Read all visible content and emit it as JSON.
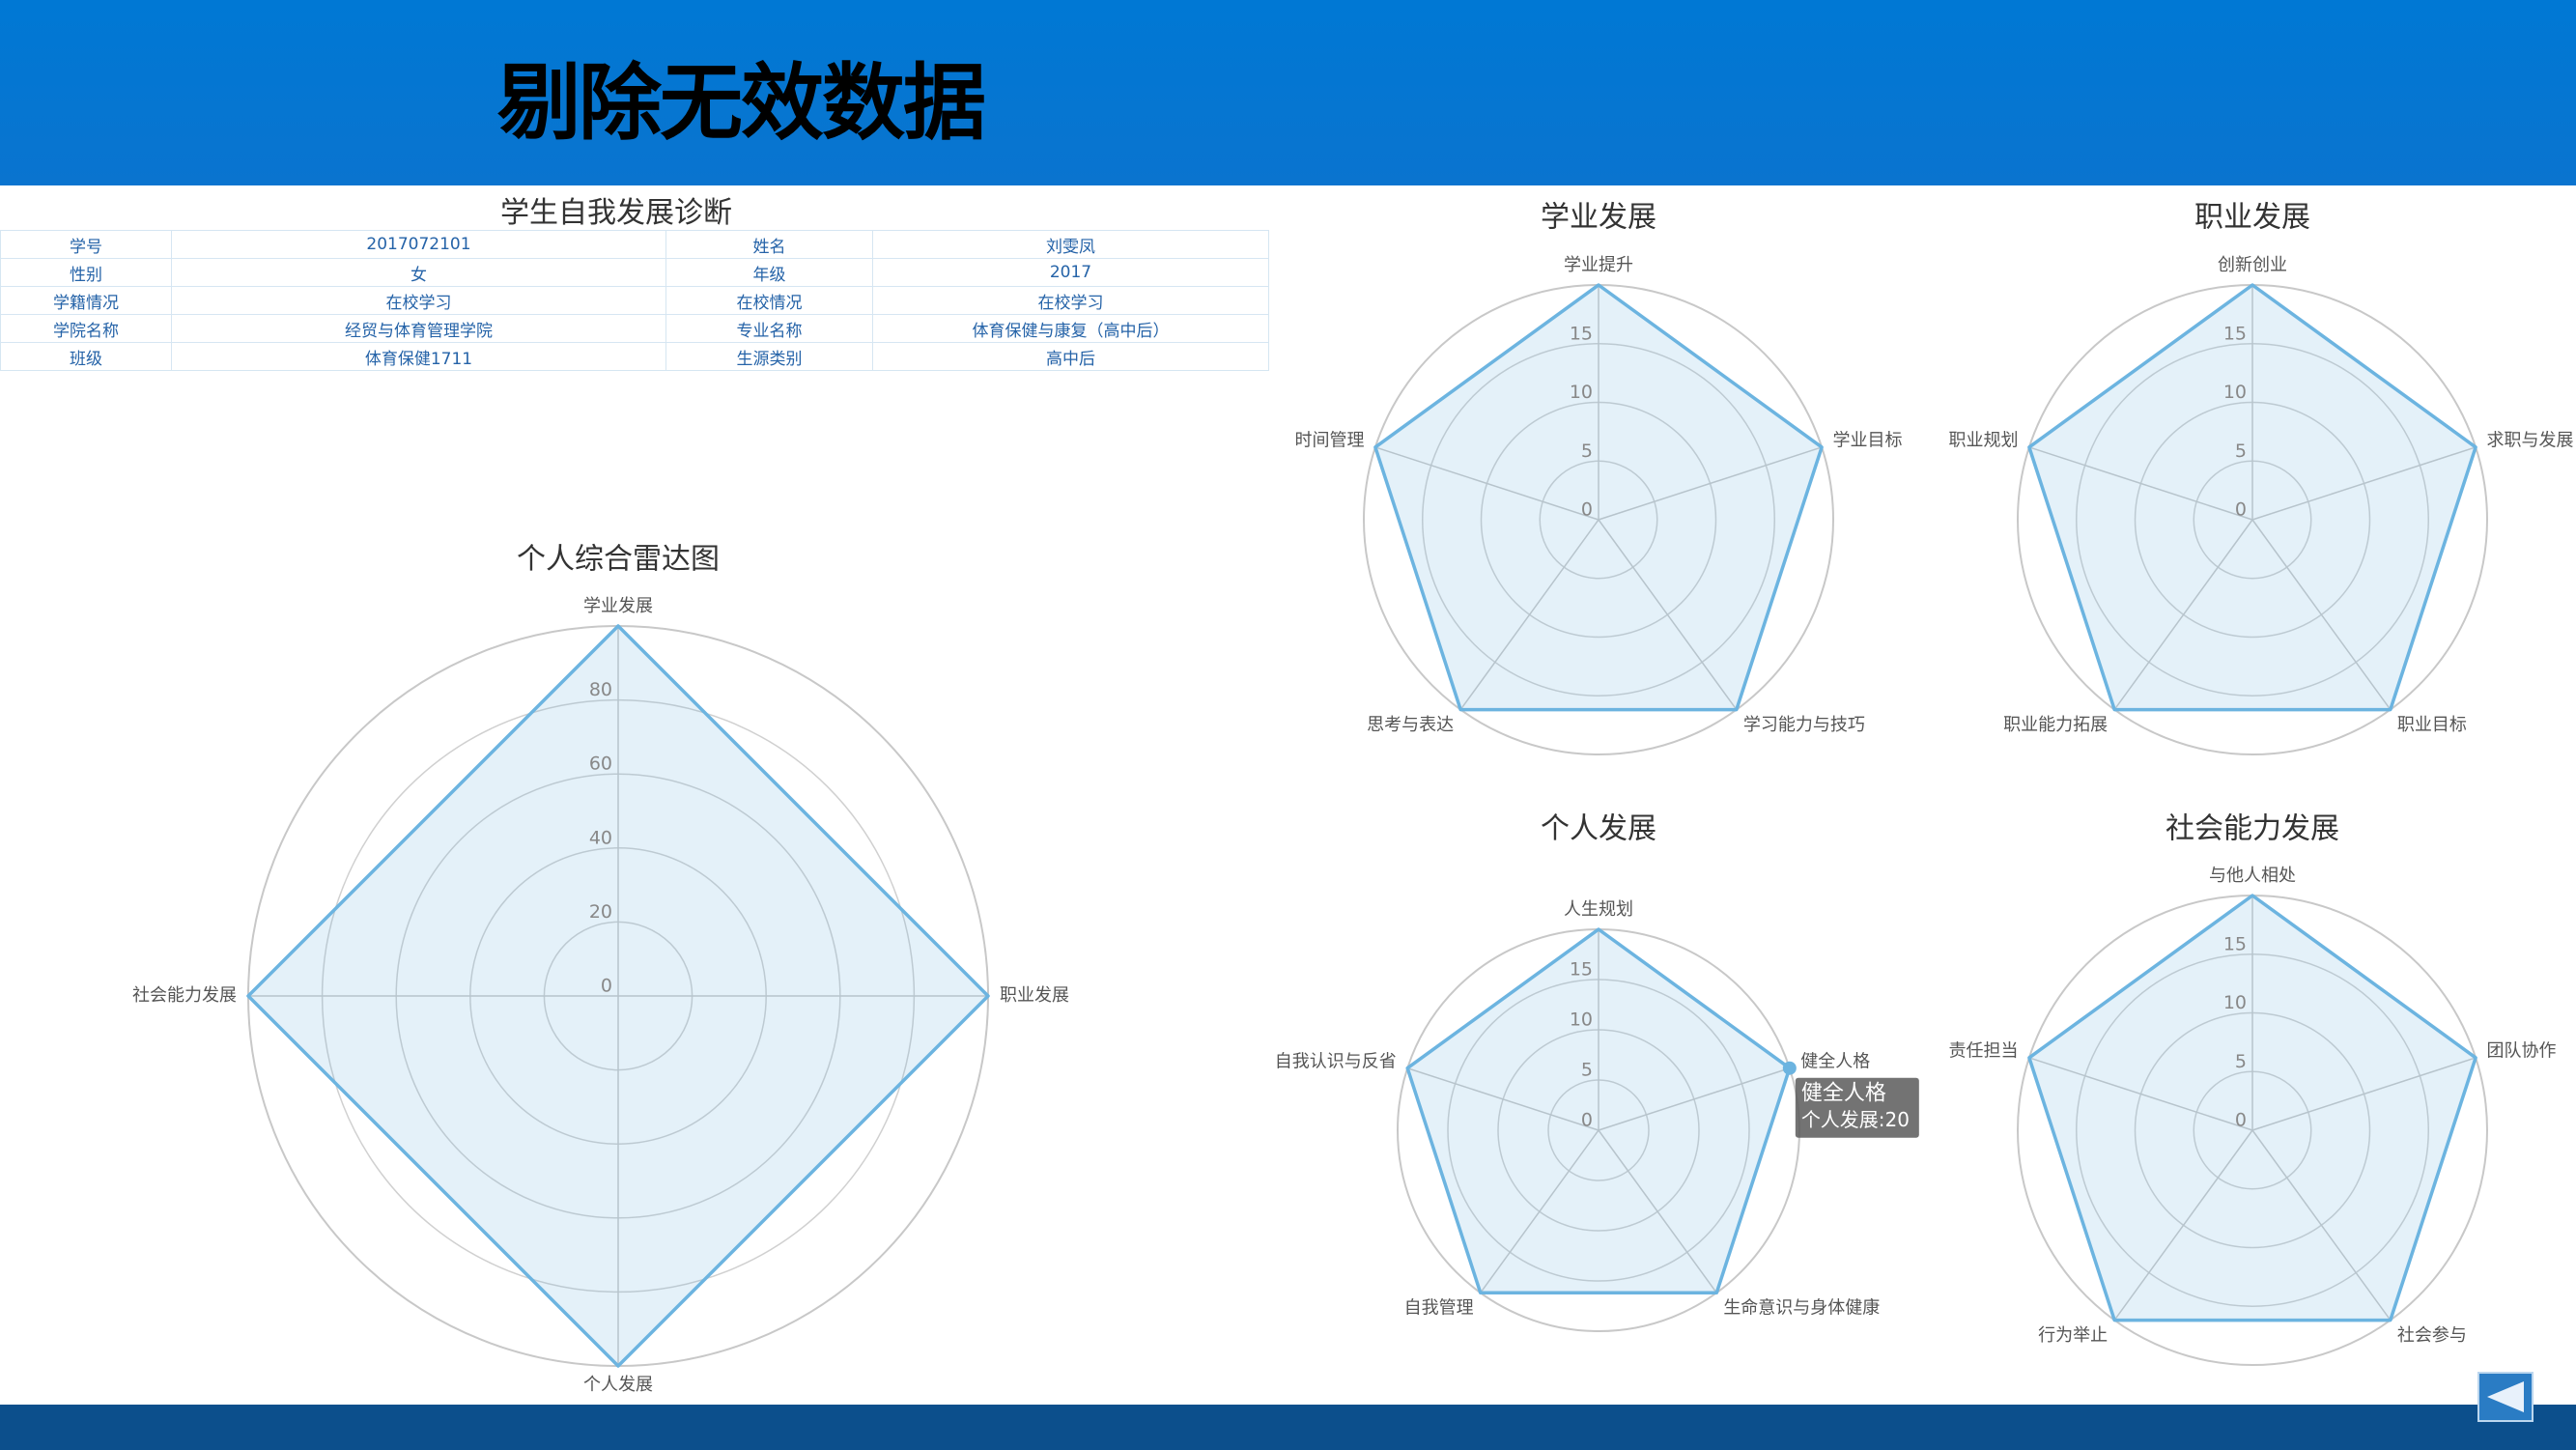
{
  "header": {
    "title": "剔除无效数据"
  },
  "table": {
    "title": "学生自我发展诊断",
    "rows": [
      [
        "学号",
        "2017072101",
        "姓名",
        "刘雯凤"
      ],
      [
        "性别",
        "女",
        "年级",
        "2017"
      ],
      [
        "学籍情况",
        "在校学习",
        "在校情况",
        "在校学习"
      ],
      [
        "学院名称",
        "经贸与体育管理学院",
        "专业名称",
        "体育保健与康复（高中后）"
      ],
      [
        "班级",
        "体育保健1711",
        "生源类别",
        "高中后"
      ]
    ]
  },
  "chart_data": [
    {
      "type": "radar",
      "title": "个人综合雷达图",
      "categories": [
        "学业发展",
        "职业发展",
        "个人发展",
        "社会能力发展"
      ],
      "values": [
        100,
        100,
        100,
        100
      ],
      "color": "#6cb4e0",
      "rlim": [
        0,
        100
      ],
      "rticks": [
        0,
        20,
        40,
        60,
        80
      ]
    },
    {
      "type": "radar",
      "title": "学业发展",
      "categories": [
        "学业提升",
        "学业目标",
        "学习能力与技巧",
        "思考与表达",
        "时间管理"
      ],
      "values": [
        20,
        20,
        20,
        20,
        20
      ],
      "color": "#6cb4e0",
      "rlim": [
        0,
        20
      ],
      "rticks": [
        0,
        5,
        10,
        15
      ]
    },
    {
      "type": "radar",
      "title": "职业发展",
      "categories": [
        "创新创业",
        "求职与发展",
        "职业目标",
        "职业能力拓展",
        "职业规划"
      ],
      "values": [
        20,
        20,
        20,
        20,
        20
      ],
      "color": "#6cb4e0",
      "rlim": [
        0,
        20
      ],
      "rticks": [
        0,
        5,
        10,
        15
      ]
    },
    {
      "type": "radar",
      "title": "个人发展",
      "categories": [
        "人生规划",
        "健全人格",
        "生命意识与身体健康",
        "自我管理",
        "自我认识与反省"
      ],
      "values": [
        20,
        20,
        20,
        20,
        20
      ],
      "color": "#6cb4e0",
      "rlim": [
        0,
        20
      ],
      "rticks": [
        0,
        5,
        10,
        15
      ],
      "tooltip": {
        "title": "健全人格",
        "text": "个人发展:20"
      }
    },
    {
      "type": "radar",
      "title": "社会能力发展",
      "categories": [
        "与他人相处",
        "团队协作",
        "社会参与",
        "行为举止",
        "责任担当"
      ],
      "values": [
        20,
        20,
        20,
        20,
        20
      ],
      "color": "#6cb4e0",
      "rlim": [
        0,
        20
      ],
      "rticks": [
        0,
        5,
        10,
        15
      ]
    }
  ]
}
